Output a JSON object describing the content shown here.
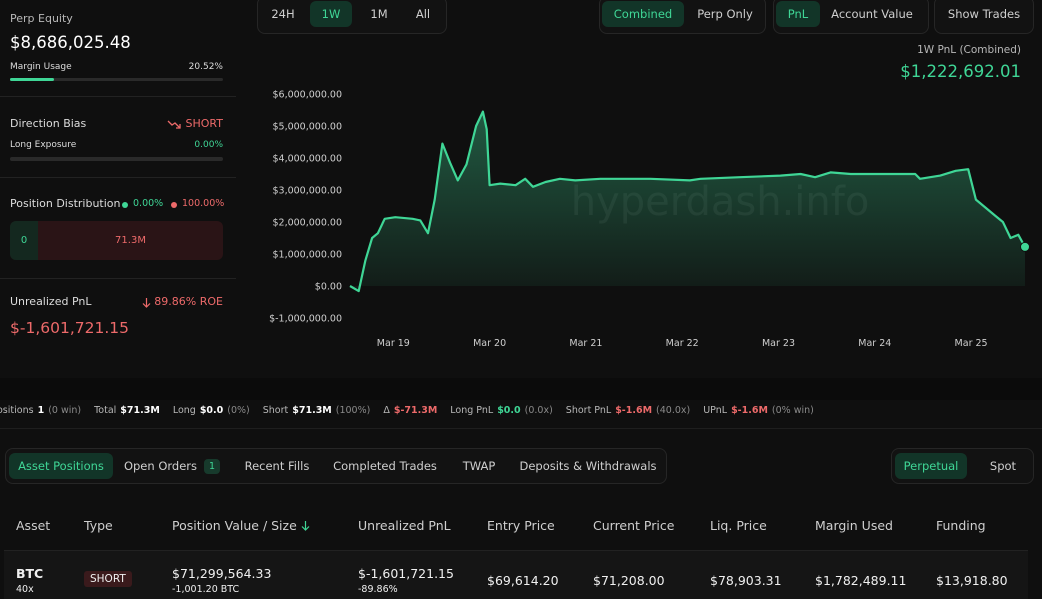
{
  "summary": {
    "perp_equity_label": "Perp Equity",
    "perp_equity": "$8,686,025.48",
    "margin_usage_label": "Margin Usage",
    "margin_usage": {
      "value": 20.52,
      "label": "20.52%"
    }
  },
  "direction": {
    "label": "Direction Bias",
    "bias": "SHORT",
    "long_exposure_label": "Long Exposure",
    "long_exposure": {
      "value": 0,
      "label": "0.00%"
    }
  },
  "distribution": {
    "label": "Position Distribution",
    "long_pct": {
      "value": 0,
      "label": "0.00%"
    },
    "short_pct": {
      "value": 100,
      "label": "100.00%"
    },
    "long_amount": "0",
    "short_amount": "71.3M"
  },
  "unrealized": {
    "label": "Unrealized PnL",
    "roe": "89.86% ROE",
    "value": "$-1,601,721.15"
  },
  "controls": {
    "range": [
      "24H",
      "1W",
      "1M",
      "All"
    ],
    "range_active": 1,
    "scope": [
      "Combined",
      "Perp Only"
    ],
    "scope_active": 0,
    "metric": [
      "PnL",
      "Account Value"
    ],
    "metric_active": 0,
    "show_trades": "Show Trades"
  },
  "chart_data": {
    "type": "line",
    "title": "1W PnL (Combined)",
    "pnl_value": "$1,222,692.01",
    "watermark": "hyperdash.info",
    "color": "#3fd696",
    "x": [
      18.55,
      18.64,
      18.71,
      18.78,
      18.84,
      18.91,
      19.02,
      19.2,
      19.28,
      19.36,
      19.43,
      19.51,
      19.59,
      19.67,
      19.76,
      19.86,
      19.93,
      19.97,
      20.0,
      20.11,
      20.27,
      20.37,
      20.45,
      20.58,
      20.73,
      20.89,
      21.15,
      21.67,
      22.08,
      22.19,
      22.6,
      23.02,
      23.23,
      23.38,
      23.54,
      23.75,
      24.26,
      24.42,
      24.47,
      24.68,
      24.84,
      24.97,
      25.05,
      25.15,
      25.25,
      25.33,
      25.41,
      25.49,
      25.56
    ],
    "values": [
      0,
      -160000,
      800000,
      1500000,
      1650000,
      2100000,
      2150000,
      2100000,
      2050000,
      1650000,
      2700000,
      4450000,
      3850000,
      3300000,
      3800000,
      5000000,
      5450000,
      4900000,
      3150000,
      3200000,
      3150000,
      3350000,
      3100000,
      3250000,
      3350000,
      3300000,
      3350000,
      3350000,
      3300000,
      3350000,
      3400000,
      3450000,
      3500000,
      3400000,
      3550000,
      3500000,
      3500000,
      3500000,
      3350000,
      3450000,
      3600000,
      3650000,
      2700000,
      2450000,
      2200000,
      2000000,
      1500000,
      1600000,
      1222692.01
    ],
    "xlim": [
      18.55,
      25.56
    ],
    "xticks": [
      {
        "value": 19,
        "label": "Mar 19"
      },
      {
        "value": 20,
        "label": "Mar 20"
      },
      {
        "value": 21,
        "label": "Mar 21"
      },
      {
        "value": 22,
        "label": "Mar 22"
      },
      {
        "value": 23,
        "label": "Mar 23"
      },
      {
        "value": 24,
        "label": "Mar 24"
      },
      {
        "value": 25,
        "label": "Mar 25"
      }
    ],
    "ylim": [
      -1000000,
      6000000
    ],
    "yticks": [
      {
        "value": -1000000,
        "label": "$-1,000,000.00"
      },
      {
        "value": 0,
        "label": "$0.00"
      },
      {
        "value": 1000000,
        "label": "$1,000,000.00"
      },
      {
        "value": 2000000,
        "label": "$2,000,000.00"
      },
      {
        "value": 3000000,
        "label": "$3,000,000.00"
      },
      {
        "value": 4000000,
        "label": "$4,000,000.00"
      },
      {
        "value": 5000000,
        "label": "$5,000,000.00"
      },
      {
        "value": 6000000,
        "label": "$6,000,000.00"
      }
    ]
  },
  "stats": [
    {
      "label": "ositions",
      "value": "1",
      "note": "(0 win)"
    },
    {
      "label": "Total",
      "value": "$71.3M"
    },
    {
      "label": "Long",
      "value": "$0.0",
      "note": "(0%)"
    },
    {
      "label": "Short",
      "value": "$71.3M",
      "note": "(100%)"
    },
    {
      "label": "Δ",
      "value": "$-71.3M",
      "color": "#ed6a6a"
    },
    {
      "label": "Long PnL",
      "value": "$0.0",
      "note": "(0.0x)",
      "color": "#3fd696"
    },
    {
      "label": "Short PnL",
      "value": "$-1.6M",
      "note": "(40.0x)",
      "color": "#ed6a6a"
    },
    {
      "label": "UPnL",
      "value": "$-1.6M",
      "note": "(0% win)",
      "color": "#ed6a6a"
    }
  ],
  "tabs": {
    "items": [
      "Asset Positions",
      "Open Orders",
      "Recent Fills",
      "Completed Trades",
      "TWAP",
      "Deposits & Withdrawals"
    ],
    "active": 0,
    "open_orders_badge": "1",
    "market": [
      "Perpetual",
      "Spot"
    ],
    "market_active": 0
  },
  "table": {
    "columns": [
      "Asset",
      "Type",
      "Position Value / Size",
      "Unrealized PnL",
      "Entry Price",
      "Current Price",
      "Liq. Price",
      "Margin Used",
      "Funding"
    ],
    "rows": [
      {
        "asset": "BTC",
        "leverage": "40x",
        "type": "SHORT",
        "position_value": "$71,299,564.33",
        "size": "-1,001.20 BTC",
        "unrealized_pnl": "$-1,601,721.15",
        "unrealized_pct": "-89.86%",
        "entry_price": "$69,614.20",
        "current_price": "$71,208.00",
        "liq_price": "$78,903.31",
        "margin_used": "$1,782,489.11",
        "funding": "$13,918.80"
      }
    ]
  }
}
